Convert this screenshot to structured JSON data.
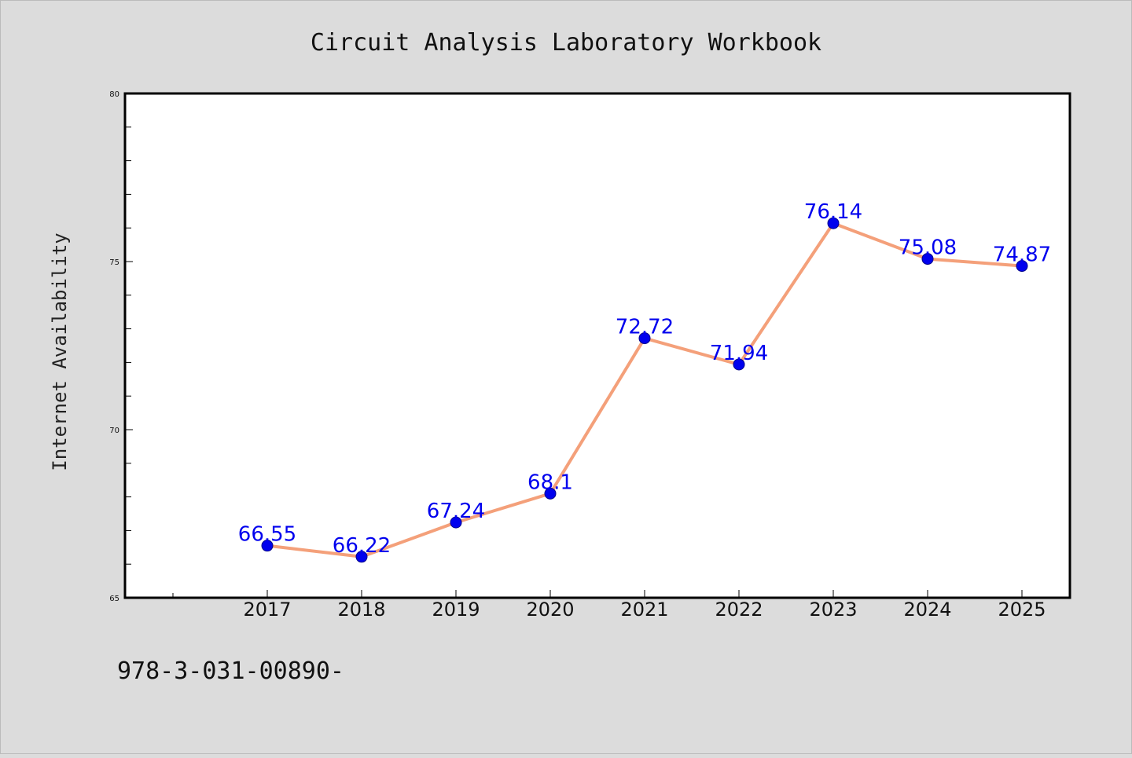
{
  "chart_data": {
    "type": "line",
    "title": "Circuit Analysis Laboratory Workbook",
    "xlabel": "",
    "ylabel": "Internet Availability",
    "categories": [
      "2017",
      "2018",
      "2019",
      "2020",
      "2021",
      "2022",
      "2023",
      "2024",
      "2025"
    ],
    "series": [
      {
        "values": [
          66.55,
          66.22,
          67.24,
          68.1,
          72.72,
          71.94,
          76.14,
          75.08,
          74.87
        ],
        "labels": [
          "66.55",
          "66.22",
          "67.24",
          "68.1",
          "72.72",
          "71.94",
          "76.14",
          "75.08",
          "74.87"
        ]
      }
    ],
    "ylim": [
      65,
      80
    ],
    "yticks": [
      65,
      70,
      75,
      80
    ],
    "ytick_labels": [
      "65",
      "70",
      "75",
      "80"
    ],
    "grid": false,
    "legend": "none",
    "colors": {
      "background": "#dcdcdc",
      "plot_background": "#ffffff",
      "line": "#f4a07a",
      "marker": "#0000ee",
      "marker_edge": "#00008b",
      "data_label": "#0000ee"
    }
  },
  "footer": {
    "isbn": "978-3-031-00890-"
  }
}
